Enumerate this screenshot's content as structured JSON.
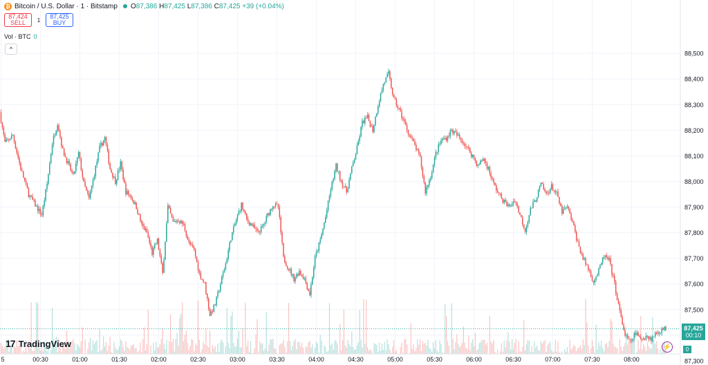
{
  "header": {
    "coin_glyph": "₿",
    "symbol_title": "Bitcoin / U.S. Dollar · 1 · Bitstamp",
    "open": "87,386",
    "high": "87,425",
    "low": "87,386",
    "close": "87,425",
    "change": "+39 (+0.04%)",
    "o_key": "O",
    "h_key": "H",
    "l_key": "L",
    "c_key": "C"
  },
  "trade": {
    "sell_price": "87,424",
    "sell_label": "SELL",
    "spread": "1",
    "buy_price": "87,425",
    "buy_label": "BUY"
  },
  "volume_legend": {
    "label": "Vol · BTC",
    "value": "0"
  },
  "collapse_glyph": "^",
  "branding": {
    "logo_mark": "17",
    "logo_text": "TradingView"
  },
  "price_label": {
    "price": "87,425",
    "countdown": "00:10"
  },
  "volume_label": "0",
  "colors": {
    "up": "#26a69a",
    "down": "#ef5350",
    "grid": "#f0f3fa",
    "axis_text": "#131722"
  },
  "chart_data": {
    "type": "candlestick",
    "y_ticks": [
      87300,
      87400,
      87500,
      87600,
      87700,
      87800,
      87900,
      88000,
      88100,
      88200,
      88300,
      88400,
      88500
    ],
    "y_tick_labels": [
      "87,300",
      "87,400",
      "87,500",
      "87,600",
      "87,700",
      "87,800",
      "87,900",
      "88,000",
      "88,100",
      "88,200",
      "88,300",
      "88,400",
      "88,500"
    ],
    "ylim": [
      87260,
      88570
    ],
    "x_tick_labels": [
      "5",
      "00:30",
      "01:00",
      "01:30",
      "02:00",
      "02:30",
      "03:00",
      "03:30",
      "04:00",
      "04:30",
      "05:00",
      "05:30",
      "06:00",
      "06:30",
      "07:00",
      "07:30",
      "08:00"
    ],
    "x_tick_minutes": [
      0,
      30,
      60,
      90,
      120,
      150,
      180,
      210,
      240,
      270,
      300,
      330,
      360,
      390,
      420,
      450,
      480
    ],
    "x_range_minutes": [
      0,
      506
    ],
    "last_price": 87425,
    "price_path": [
      [
        0,
        88270
      ],
      [
        4,
        88150
      ],
      [
        10,
        88180
      ],
      [
        16,
        88050
      ],
      [
        22,
        87950
      ],
      [
        28,
        87900
      ],
      [
        32,
        87870
      ],
      [
        36,
        87990
      ],
      [
        40,
        88150
      ],
      [
        44,
        88230
      ],
      [
        48,
        88120
      ],
      [
        52,
        88070
      ],
      [
        56,
        88020
      ],
      [
        60,
        88110
      ],
      [
        64,
        87990
      ],
      [
        68,
        87930
      ],
      [
        72,
        88030
      ],
      [
        76,
        88130
      ],
      [
        80,
        88170
      ],
      [
        84,
        88050
      ],
      [
        88,
        88000
      ],
      [
        92,
        88070
      ],
      [
        96,
        87960
      ],
      [
        100,
        87940
      ],
      [
        104,
        87900
      ],
      [
        108,
        87830
      ],
      [
        112,
        87800
      ],
      [
        116,
        87720
      ],
      [
        120,
        87770
      ],
      [
        124,
        87640
      ],
      [
        128,
        87900
      ],
      [
        132,
        87840
      ],
      [
        136,
        87850
      ],
      [
        140,
        87830
      ],
      [
        144,
        87760
      ],
      [
        148,
        87730
      ],
      [
        152,
        87640
      ],
      [
        156,
        87600
      ],
      [
        160,
        87480
      ],
      [
        164,
        87520
      ],
      [
        168,
        87600
      ],
      [
        172,
        87680
      ],
      [
        176,
        87780
      ],
      [
        180,
        87850
      ],
      [
        184,
        87910
      ],
      [
        188,
        87850
      ],
      [
        192,
        87830
      ],
      [
        196,
        87800
      ],
      [
        200,
        87820
      ],
      [
        204,
        87870
      ],
      [
        208,
        87910
      ],
      [
        212,
        87900
      ],
      [
        216,
        87700
      ],
      [
        220,
        87660
      ],
      [
        224,
        87620
      ],
      [
        228,
        87650
      ],
      [
        232,
        87620
      ],
      [
        236,
        87560
      ],
      [
        240,
        87700
      ],
      [
        244,
        87770
      ],
      [
        248,
        87860
      ],
      [
        252,
        87970
      ],
      [
        256,
        88060
      ],
      [
        260,
        88000
      ],
      [
        264,
        87960
      ],
      [
        268,
        88050
      ],
      [
        272,
        88130
      ],
      [
        276,
        88230
      ],
      [
        280,
        88250
      ],
      [
        284,
        88200
      ],
      [
        288,
        88300
      ],
      [
        292,
        88380
      ],
      [
        296,
        88420
      ],
      [
        300,
        88320
      ],
      [
        304,
        88280
      ],
      [
        308,
        88230
      ],
      [
        312,
        88180
      ],
      [
        316,
        88140
      ],
      [
        320,
        88090
      ],
      [
        324,
        87960
      ],
      [
        328,
        88020
      ],
      [
        332,
        88110
      ],
      [
        336,
        88160
      ],
      [
        340,
        88170
      ],
      [
        344,
        88200
      ],
      [
        348,
        88180
      ],
      [
        352,
        88160
      ],
      [
        356,
        88130
      ],
      [
        360,
        88100
      ],
      [
        364,
        88060
      ],
      [
        368,
        88090
      ],
      [
        372,
        88050
      ],
      [
        376,
        87990
      ],
      [
        380,
        87950
      ],
      [
        384,
        87920
      ],
      [
        388,
        87900
      ],
      [
        392,
        87930
      ],
      [
        396,
        87870
      ],
      [
        400,
        87810
      ],
      [
        404,
        87890
      ],
      [
        408,
        87930
      ],
      [
        412,
        87990
      ],
      [
        416,
        87950
      ],
      [
        420,
        87980
      ],
      [
        424,
        87950
      ],
      [
        428,
        87880
      ],
      [
        432,
        87900
      ],
      [
        436,
        87840
      ],
      [
        440,
        87760
      ],
      [
        444,
        87700
      ],
      [
        448,
        87660
      ],
      [
        452,
        87610
      ],
      [
        456,
        87650
      ],
      [
        460,
        87710
      ],
      [
        464,
        87690
      ],
      [
        468,
        87600
      ],
      [
        472,
        87490
      ],
      [
        476,
        87400
      ],
      [
        480,
        87370
      ],
      [
        484,
        87410
      ],
      [
        488,
        87380
      ],
      [
        492,
        87400
      ],
      [
        496,
        87385
      ],
      [
        500,
        87410
      ],
      [
        506,
        87425
      ]
    ],
    "volume_ylim": [
      0,
      5
    ]
  }
}
